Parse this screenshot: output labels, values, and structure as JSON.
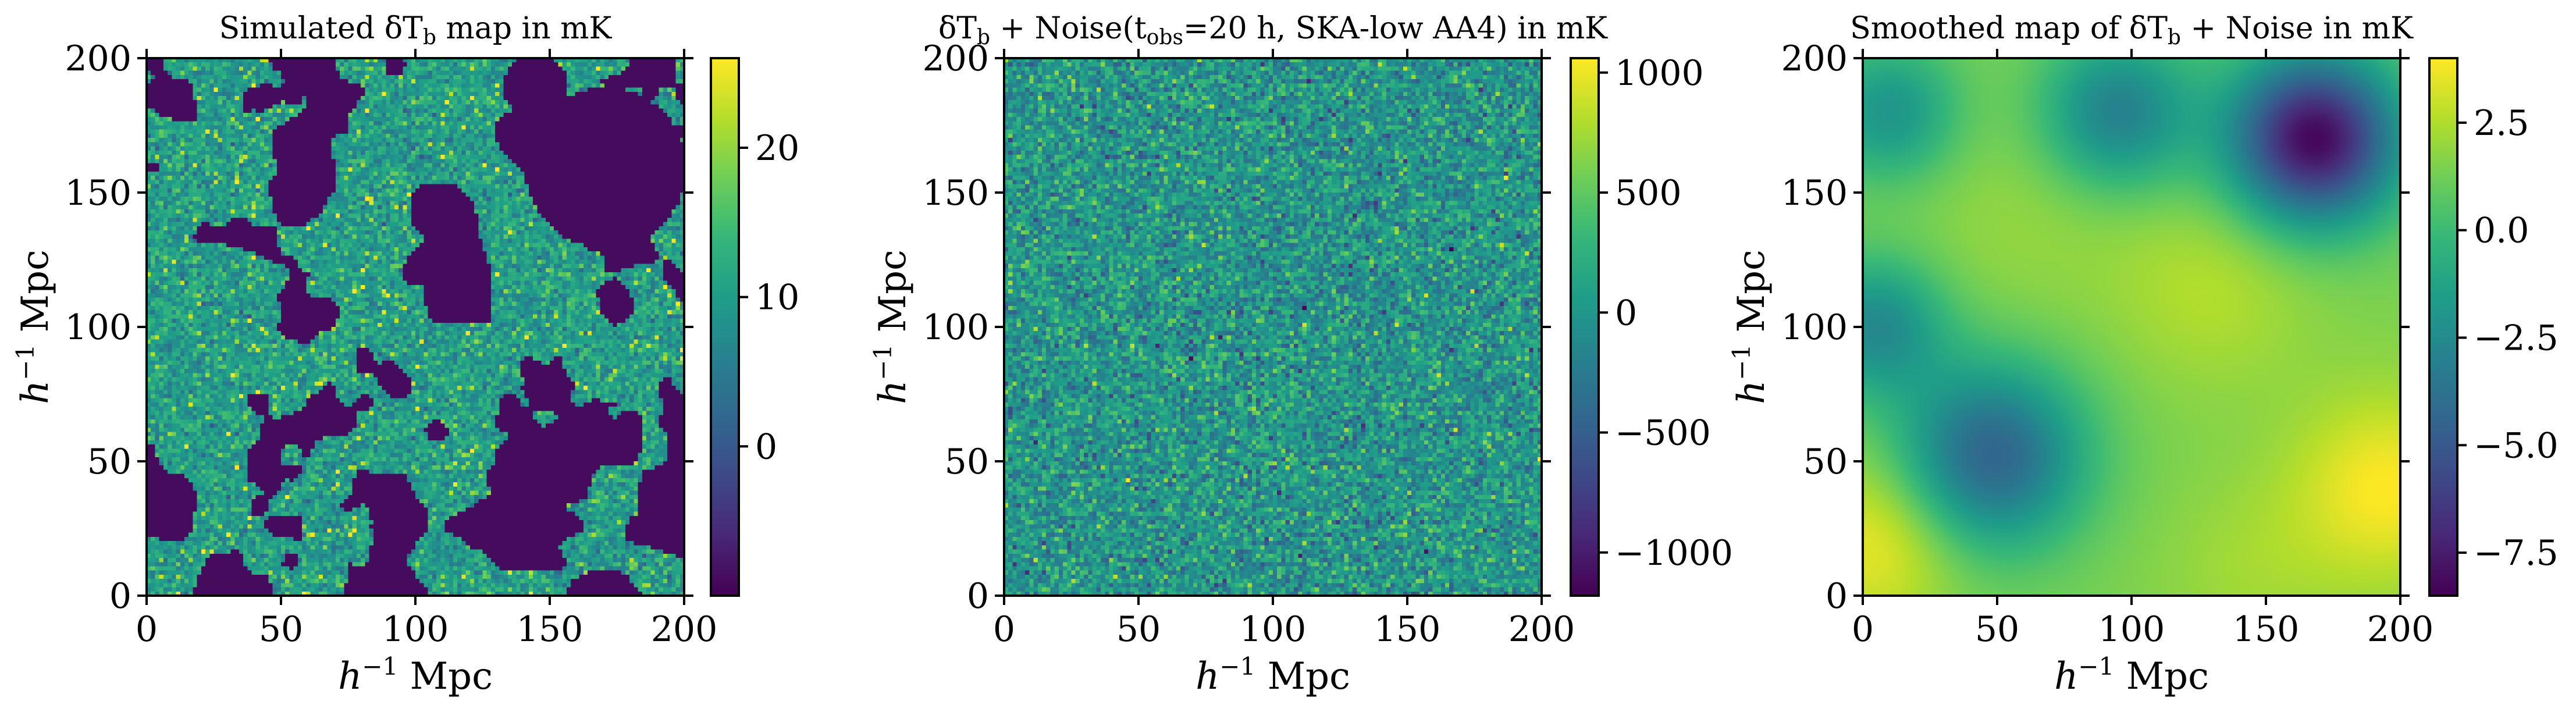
{
  "chart_data": [
    {
      "type": "heatmap",
      "title_parts": {
        "pre": "Simulated δT",
        "sub": "b",
        "post": " map in mK"
      },
      "title": "Simulated δT_b map in mK",
      "xlabel": {
        "base": "h",
        "sup": "−1",
        "rest": " Mpc"
      },
      "ylabel": {
        "base": "h",
        "sup": "−1",
        "rest": " Mpc"
      },
      "xlim": [
        0,
        200
      ],
      "ylim": [
        0,
        200
      ],
      "xticks": [
        "0",
        "50",
        "100",
        "150",
        "200"
      ],
      "yticks": [
        "0",
        "50",
        "100",
        "150",
        "200"
      ],
      "colormap": "viridis",
      "colorbar": {
        "min": -10,
        "max": 26,
        "ticks": [
          0,
          10,
          20
        ],
        "tick_labels": [
          "0",
          "10",
          "20"
        ]
      },
      "description_values": {
        "grid": 128,
        "ionized_value": -9,
        "neutral_mean": 10
      }
    },
    {
      "type": "heatmap",
      "title_parts": {
        "pre": "δT",
        "sub": "b",
        "mid": " + Noise(t",
        "sub2": "obs",
        "post": "=20 h, SKA-low AA4) in mK"
      },
      "title": "δT_b + Noise(t_obs=20 h, SKA-low AA4) in mK",
      "xlabel": {
        "base": "h",
        "sup": "−1",
        "rest": " Mpc"
      },
      "ylabel": {
        "base": "h",
        "sup": "−1",
        "rest": " Mpc"
      },
      "xlim": [
        0,
        200
      ],
      "ylim": [
        0,
        200
      ],
      "xticks": [
        "0",
        "50",
        "100",
        "150",
        "200"
      ],
      "yticks": [
        "0",
        "50",
        "100",
        "150",
        "200"
      ],
      "colormap": "viridis",
      "colorbar": {
        "min": -1180,
        "max": 1060,
        "ticks": [
          -1000,
          -500,
          0,
          500,
          1000
        ],
        "tick_labels": [
          "−1000",
          "−500",
          "0",
          "500",
          "1000"
        ]
      },
      "description_values": {
        "grid": 128,
        "noise_sigma": 260
      }
    },
    {
      "type": "heatmap",
      "title_parts": {
        "pre": "Smoothed map of δT",
        "sub": "b",
        "post": " + Noise in mK"
      },
      "title": "Smoothed map of δT_b + Noise in mK",
      "xlabel": {
        "base": "h",
        "sup": "−1",
        "rest": " Mpc"
      },
      "ylabel": {
        "base": "h",
        "sup": "−1",
        "rest": " Mpc"
      },
      "xlim": [
        0,
        200
      ],
      "ylim": [
        0,
        200
      ],
      "xticks": [
        "0",
        "50",
        "100",
        "150",
        "200"
      ],
      "yticks": [
        "0",
        "50",
        "100",
        "150",
        "200"
      ],
      "colormap": "viridis",
      "colorbar": {
        "min": -8.5,
        "max": 4.0,
        "ticks": [
          -7.5,
          -5.0,
          -2.5,
          0.0,
          2.5
        ],
        "tick_labels": [
          "−7.5",
          "−5.0",
          "−2.5",
          "0.0",
          "2.5"
        ]
      },
      "features": [
        {
          "x": 168,
          "y": 170,
          "value": -8.3,
          "width": 22
        },
        {
          "x": 48,
          "y": 52,
          "value": -4.5,
          "width": 24
        },
        {
          "x": 95,
          "y": 180,
          "value": -3.0,
          "width": 20
        },
        {
          "x": 5,
          "y": 100,
          "value": -2.5,
          "width": 18
        },
        {
          "x": 10,
          "y": 180,
          "value": -2.0,
          "width": 18
        },
        {
          "x": 195,
          "y": 40,
          "value": 4.0,
          "width": 24
        },
        {
          "x": 5,
          "y": 20,
          "value": 3.8,
          "width": 22
        },
        {
          "x": 130,
          "y": 115,
          "value": 2.6,
          "width": 26
        },
        {
          "x": 145,
          "y": 10,
          "value": 2.2,
          "width": 24
        },
        {
          "x": 60,
          "y": 140,
          "value": 2.0,
          "width": 28
        }
      ],
      "background_value": 1.5
    }
  ]
}
